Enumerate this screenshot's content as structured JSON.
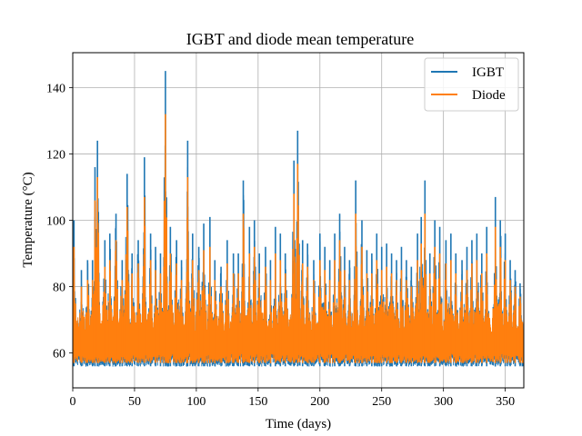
{
  "chart_data": {
    "type": "line",
    "title": "IGBT and diode mean temperature",
    "xlabel": "Time (days)",
    "ylabel": "Temperature (°C)",
    "xlim": [
      0,
      365
    ],
    "ylim": [
      49.5,
      150.5
    ],
    "xticks": [
      0,
      50,
      100,
      150,
      200,
      250,
      300,
      350
    ],
    "yticks": [
      60,
      80,
      100,
      120,
      140
    ],
    "grid": true,
    "legend_position": "top-right",
    "series": [
      {
        "name": "IGBT",
        "color": "#1f77b4",
        "baseline_min": 56,
        "peaks": [
          {
            "x": 1,
            "y": 100
          },
          {
            "x": 7,
            "y": 85
          },
          {
            "x": 12,
            "y": 88
          },
          {
            "x": 16,
            "y": 88
          },
          {
            "x": 18,
            "y": 116
          },
          {
            "x": 20,
            "y": 124
          },
          {
            "x": 26,
            "y": 94
          },
          {
            "x": 30,
            "y": 96
          },
          {
            "x": 35,
            "y": 102
          },
          {
            "x": 40,
            "y": 88
          },
          {
            "x": 44,
            "y": 114
          },
          {
            "x": 48,
            "y": 90
          },
          {
            "x": 53,
            "y": 94
          },
          {
            "x": 58,
            "y": 119
          },
          {
            "x": 63,
            "y": 96
          },
          {
            "x": 67,
            "y": 92
          },
          {
            "x": 71,
            "y": 90
          },
          {
            "x": 75,
            "y": 145
          },
          {
            "x": 79,
            "y": 98
          },
          {
            "x": 84,
            "y": 94
          },
          {
            "x": 88,
            "y": 88
          },
          {
            "x": 93,
            "y": 124
          },
          {
            "x": 97,
            "y": 96
          },
          {
            "x": 102,
            "y": 92
          },
          {
            "x": 106,
            "y": 99
          },
          {
            "x": 111,
            "y": 101
          },
          {
            "x": 115,
            "y": 88
          },
          {
            "x": 120,
            "y": 86
          },
          {
            "x": 125,
            "y": 94
          },
          {
            "x": 130,
            "y": 90
          },
          {
            "x": 134,
            "y": 90
          },
          {
            "x": 138,
            "y": 112
          },
          {
            "x": 143,
            "y": 98
          },
          {
            "x": 147,
            "y": 100
          },
          {
            "x": 151,
            "y": 90
          },
          {
            "x": 156,
            "y": 92
          },
          {
            "x": 160,
            "y": 88
          },
          {
            "x": 164,
            "y": 98
          },
          {
            "x": 168,
            "y": 96
          },
          {
            "x": 172,
            "y": 90
          },
          {
            "x": 179,
            "y": 118
          },
          {
            "x": 182,
            "y": 127
          },
          {
            "x": 186,
            "y": 94
          },
          {
            "x": 190,
            "y": 93
          },
          {
            "x": 195,
            "y": 88
          },
          {
            "x": 200,
            "y": 96
          },
          {
            "x": 204,
            "y": 92
          },
          {
            "x": 208,
            "y": 88
          },
          {
            "x": 212,
            "y": 96
          },
          {
            "x": 216,
            "y": 102
          },
          {
            "x": 220,
            "y": 92
          },
          {
            "x": 224,
            "y": 88
          },
          {
            "x": 229,
            "y": 112
          },
          {
            "x": 234,
            "y": 100
          },
          {
            "x": 238,
            "y": 91
          },
          {
            "x": 242,
            "y": 90
          },
          {
            "x": 246,
            "y": 96
          },
          {
            "x": 250,
            "y": 92
          },
          {
            "x": 254,
            "y": 93
          },
          {
            "x": 258,
            "y": 90
          },
          {
            "x": 262,
            "y": 88
          },
          {
            "x": 266,
            "y": 92
          },
          {
            "x": 270,
            "y": 88
          },
          {
            "x": 274,
            "y": 86
          },
          {
            "x": 279,
            "y": 96
          },
          {
            "x": 282,
            "y": 101
          },
          {
            "x": 285,
            "y": 112
          },
          {
            "x": 289,
            "y": 90
          },
          {
            "x": 293,
            "y": 100
          },
          {
            "x": 297,
            "y": 98
          },
          {
            "x": 302,
            "y": 94
          },
          {
            "x": 306,
            "y": 96
          },
          {
            "x": 310,
            "y": 90
          },
          {
            "x": 315,
            "y": 88
          },
          {
            "x": 319,
            "y": 92
          },
          {
            "x": 323,
            "y": 94
          },
          {
            "x": 327,
            "y": 96
          },
          {
            "x": 331,
            "y": 90
          },
          {
            "x": 335,
            "y": 98
          },
          {
            "x": 342,
            "y": 107
          },
          {
            "x": 346,
            "y": 100
          },
          {
            "x": 350,
            "y": 96
          },
          {
            "x": 354,
            "y": 88
          },
          {
            "x": 358,
            "y": 85
          },
          {
            "x": 362,
            "y": 81
          }
        ]
      },
      {
        "name": "Diode",
        "color": "#ff7f0e",
        "baseline_min": 57,
        "peaks": [
          {
            "x": 1,
            "y": 92
          },
          {
            "x": 7,
            "y": 80
          },
          {
            "x": 12,
            "y": 82
          },
          {
            "x": 16,
            "y": 82
          },
          {
            "x": 18,
            "y": 106
          },
          {
            "x": 20,
            "y": 113
          },
          {
            "x": 26,
            "y": 86
          },
          {
            "x": 30,
            "y": 88
          },
          {
            "x": 35,
            "y": 94
          },
          {
            "x": 40,
            "y": 82
          },
          {
            "x": 44,
            "y": 104
          },
          {
            "x": 48,
            "y": 84
          },
          {
            "x": 53,
            "y": 87
          },
          {
            "x": 58,
            "y": 107
          },
          {
            "x": 63,
            "y": 88
          },
          {
            "x": 67,
            "y": 85
          },
          {
            "x": 71,
            "y": 84
          },
          {
            "x": 75,
            "y": 132
          },
          {
            "x": 79,
            "y": 90
          },
          {
            "x": 84,
            "y": 87
          },
          {
            "x": 88,
            "y": 82
          },
          {
            "x": 93,
            "y": 113
          },
          {
            "x": 97,
            "y": 88
          },
          {
            "x": 102,
            "y": 85
          },
          {
            "x": 106,
            "y": 91
          },
          {
            "x": 111,
            "y": 92
          },
          {
            "x": 115,
            "y": 82
          },
          {
            "x": 120,
            "y": 80
          },
          {
            "x": 125,
            "y": 87
          },
          {
            "x": 130,
            "y": 84
          },
          {
            "x": 134,
            "y": 84
          },
          {
            "x": 138,
            "y": 102
          },
          {
            "x": 143,
            "y": 90
          },
          {
            "x": 147,
            "y": 92
          },
          {
            "x": 151,
            "y": 84
          },
          {
            "x": 156,
            "y": 86
          },
          {
            "x": 160,
            "y": 82
          },
          {
            "x": 164,
            "y": 90
          },
          {
            "x": 168,
            "y": 88
          },
          {
            "x": 172,
            "y": 84
          },
          {
            "x": 179,
            "y": 108
          },
          {
            "x": 182,
            "y": 117
          },
          {
            "x": 186,
            "y": 87
          },
          {
            "x": 190,
            "y": 86
          },
          {
            "x": 195,
            "y": 82
          },
          {
            "x": 200,
            "y": 88
          },
          {
            "x": 204,
            "y": 85
          },
          {
            "x": 208,
            "y": 82
          },
          {
            "x": 212,
            "y": 88
          },
          {
            "x": 216,
            "y": 94
          },
          {
            "x": 220,
            "y": 85
          },
          {
            "x": 224,
            "y": 82
          },
          {
            "x": 229,
            "y": 102
          },
          {
            "x": 234,
            "y": 92
          },
          {
            "x": 238,
            "y": 84
          },
          {
            "x": 242,
            "y": 84
          },
          {
            "x": 246,
            "y": 88
          },
          {
            "x": 250,
            "y": 85
          },
          {
            "x": 254,
            "y": 86
          },
          {
            "x": 258,
            "y": 84
          },
          {
            "x": 262,
            "y": 82
          },
          {
            "x": 266,
            "y": 85
          },
          {
            "x": 270,
            "y": 82
          },
          {
            "x": 274,
            "y": 80
          },
          {
            "x": 279,
            "y": 88
          },
          {
            "x": 282,
            "y": 93
          },
          {
            "x": 285,
            "y": 102
          },
          {
            "x": 289,
            "y": 84
          },
          {
            "x": 293,
            "y": 92
          },
          {
            "x": 297,
            "y": 90
          },
          {
            "x": 302,
            "y": 87
          },
          {
            "x": 306,
            "y": 88
          },
          {
            "x": 310,
            "y": 84
          },
          {
            "x": 315,
            "y": 82
          },
          {
            "x": 319,
            "y": 85
          },
          {
            "x": 323,
            "y": 87
          },
          {
            "x": 327,
            "y": 88
          },
          {
            "x": 331,
            "y": 84
          },
          {
            "x": 335,
            "y": 90
          },
          {
            "x": 342,
            "y": 98
          },
          {
            "x": 346,
            "y": 92
          },
          {
            "x": 350,
            "y": 88
          },
          {
            "x": 354,
            "y": 82
          },
          {
            "x": 358,
            "y": 80
          },
          {
            "x": 362,
            "y": 77
          }
        ]
      }
    ]
  }
}
